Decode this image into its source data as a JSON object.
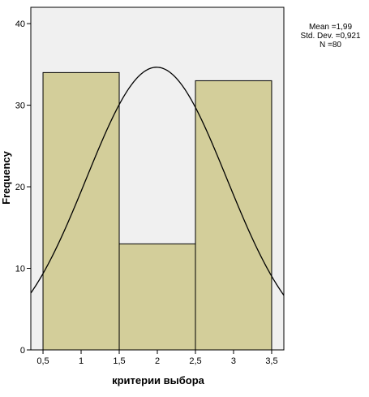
{
  "chart_data": {
    "type": "bar",
    "xlabel": "критерии выбора",
    "ylabel": "Frequency",
    "bins": [
      {
        "from": 0.5,
        "to": 1.5,
        "count": 34
      },
      {
        "from": 1.5,
        "to": 2.5,
        "count": 13
      },
      {
        "from": 2.5,
        "to": 3.5,
        "count": 33
      }
    ],
    "xticks": [
      "0,5",
      "1",
      "1,5",
      "2",
      "2,5",
      "3",
      "3,5"
    ],
    "xtick_values": [
      0.5,
      1,
      1.5,
      2,
      2.5,
      3,
      3.5
    ],
    "yticks": [
      "0",
      "10",
      "20",
      "30",
      "40"
    ],
    "ytick_values": [
      0,
      10,
      20,
      30,
      40
    ],
    "xlim": [
      0.34,
      3.66
    ],
    "ylim": [
      0,
      42
    ],
    "normal_curve": {
      "mean": 1.99,
      "sd": 0.921,
      "n": 80,
      "bin_width": 1
    },
    "stats": {
      "mean": "Mean =1,99",
      "sd": "Std. Dev. =0,921",
      "n": "N =80"
    },
    "colors": {
      "plot_background": "#f0f0f0",
      "bar_fill": "#d3ce9a",
      "bar_stroke": "#000000",
      "curve": "#000000"
    },
    "grid": false
  }
}
